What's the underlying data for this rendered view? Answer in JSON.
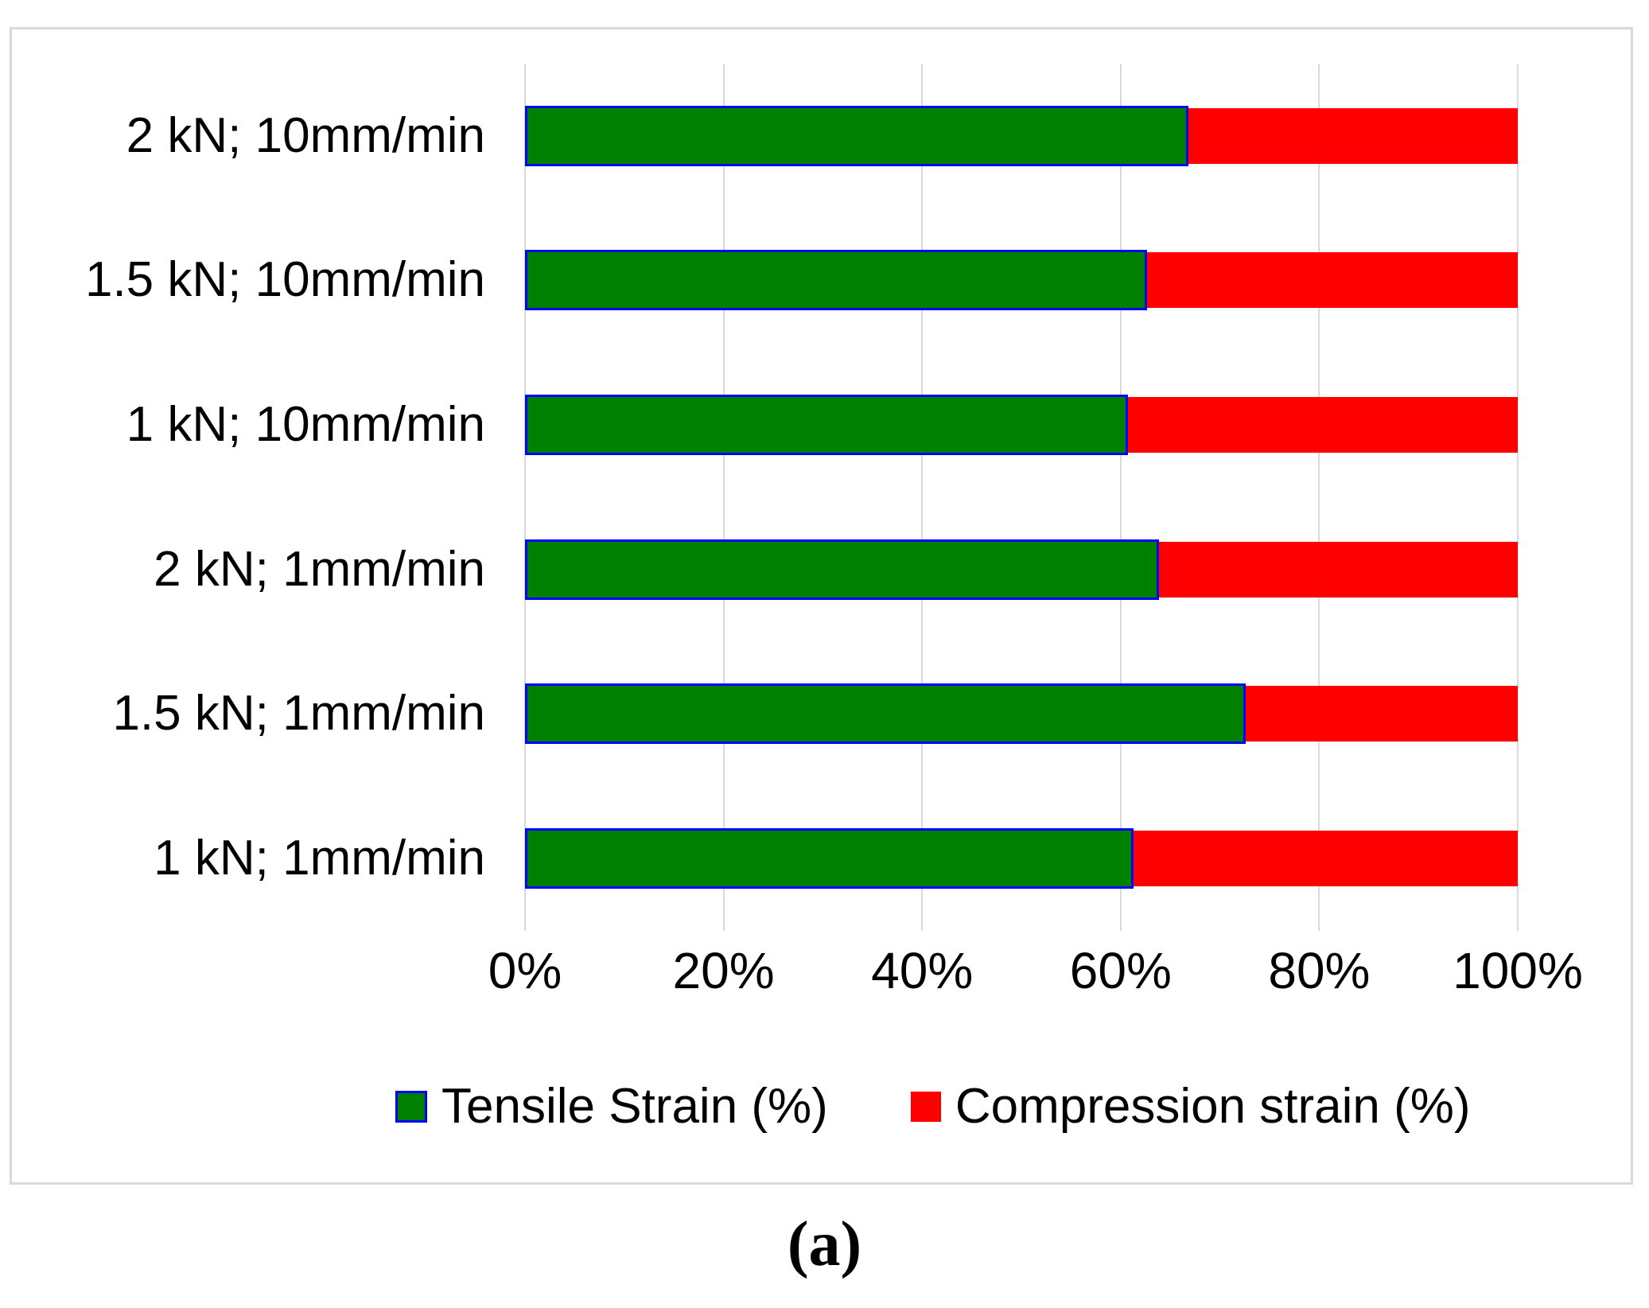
{
  "figure": {
    "caption": "(a)"
  },
  "chart_data": {
    "type": "bar",
    "orientation": "horizontal",
    "stacked": true,
    "title": "",
    "xlabel": "",
    "ylabel": "",
    "categories": [
      "2 kN; 10mm/min",
      "1.5 kN; 10mm/min",
      "1 kN; 10mm/min",
      "2 kN; 1mm/min",
      "1.5 kN; 1mm/min",
      "1 kN; 1mm/min"
    ],
    "series": [
      {
        "name": "Tensile Strain (%)",
        "color": "#008000",
        "border_color": "#0000ff",
        "values": [
          66.8,
          62.7,
          60.7,
          63.9,
          72.6,
          61.3
        ]
      },
      {
        "name": "Compression strain (%)",
        "color": "#ff0000",
        "values": [
          33.2,
          37.3,
          39.3,
          36.1,
          27.4,
          38.7
        ]
      }
    ],
    "x_axis": {
      "range": [
        0,
        100
      ],
      "tick_values": [
        0,
        20,
        40,
        60,
        80,
        100
      ],
      "ticks": [
        "0%",
        "20%",
        "40%",
        "60%",
        "80%",
        "100%"
      ],
      "grid": true,
      "gridline_color": "#d9d9d9"
    },
    "legend": {
      "position": "bottom"
    }
  }
}
